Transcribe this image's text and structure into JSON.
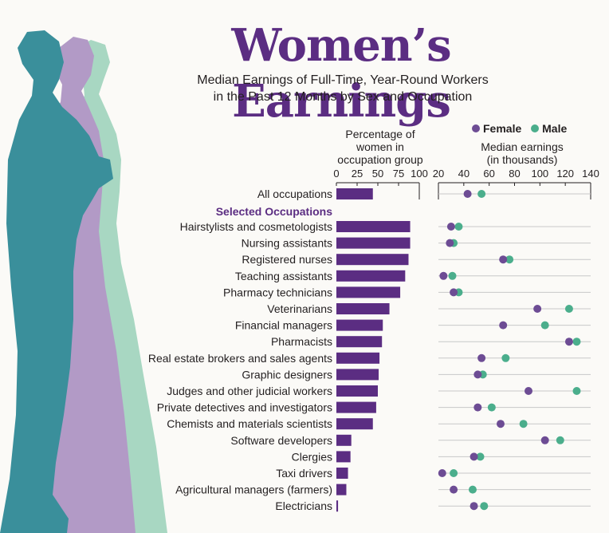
{
  "title": "Women’s Earnings",
  "subtitle_lines": [
    "Median Earnings of Full-Time, Year-Round Workers",
    "in the Past 12 Months by Sex and Occupation"
  ],
  "left_panel": {
    "caption_lines": [
      "Percentage of",
      "women in",
      "occupation group"
    ]
  },
  "right_panel": {
    "caption_lines": [
      "Median earnings",
      "(in thousands)"
    ]
  },
  "legend": {
    "female_label": "Female",
    "male_label": "Male"
  },
  "section_heading": "Selected Occupations",
  "colors": {
    "title": "#5b2d82",
    "bar": "#5b2d82",
    "female": "#6d4c94",
    "male": "#4bae8c",
    "silhouette_teal": "#3a8f9b",
    "silhouette_lavender": "#b29ac6",
    "silhouette_mint": "#a8d7c2",
    "gridline": "#c8c8c8"
  },
  "chart_data": [
    {
      "type": "bar",
      "orientation": "horizontal",
      "xlabel": "Percentage of women in occupation group",
      "xlim": [
        0,
        100
      ],
      "xticks": [
        0,
        25,
        50,
        75,
        100
      ],
      "categories": [
        "All occupations",
        "Hairstylists and cosmetologists",
        "Nursing assistants",
        "Registered nurses",
        "Teaching assistants",
        "Pharmacy technicians",
        "Veterinarians",
        "Financial managers",
        "Pharmacists",
        "Real estate brokers and sales agents",
        "Graphic designers",
        "Judges and other judicial workers",
        "Private detectives and investigators",
        "Chemists and materials scientists",
        "Software developers",
        "Clergies",
        "Taxi drivers",
        "Agricultural managers (farmers)",
        "Electricians"
      ],
      "values": [
        44,
        89,
        89,
        87,
        83,
        77,
        64,
        56,
        55,
        52,
        51,
        50,
        48,
        44,
        18,
        17,
        14,
        12,
        2
      ]
    },
    {
      "type": "scatter",
      "subtype": "dot plot",
      "xlabel": "Median earnings (in thousands)",
      "xlim": [
        20,
        140
      ],
      "xticks": [
        20,
        40,
        60,
        80,
        100,
        120,
        140
      ],
      "categories": [
        "All occupations",
        "Hairstylists and cosmetologists",
        "Nursing assistants",
        "Registered nurses",
        "Teaching assistants",
        "Pharmacy technicians",
        "Veterinarians",
        "Financial managers",
        "Pharmacists",
        "Real estate brokers and sales agents",
        "Graphic designers",
        "Judges and other judicial workers",
        "Private detectives and investigators",
        "Chemists and materials scientists",
        "Software developers",
        "Clergies",
        "Taxi drivers",
        "Agricultural managers (farmers)",
        "Electricians"
      ],
      "series": [
        {
          "name": "Female",
          "values": [
            43,
            30,
            29,
            71,
            24,
            32,
            98,
            71,
            123,
            54,
            51,
            91,
            51,
            69,
            104,
            48,
            23,
            32,
            48
          ]
        },
        {
          "name": "Male",
          "values": [
            54,
            36,
            32,
            76,
            31,
            36,
            123,
            104,
            129,
            73,
            55,
            129,
            62,
            87,
            116,
            53,
            32,
            47,
            56
          ]
        }
      ],
      "legend": "top"
    }
  ]
}
